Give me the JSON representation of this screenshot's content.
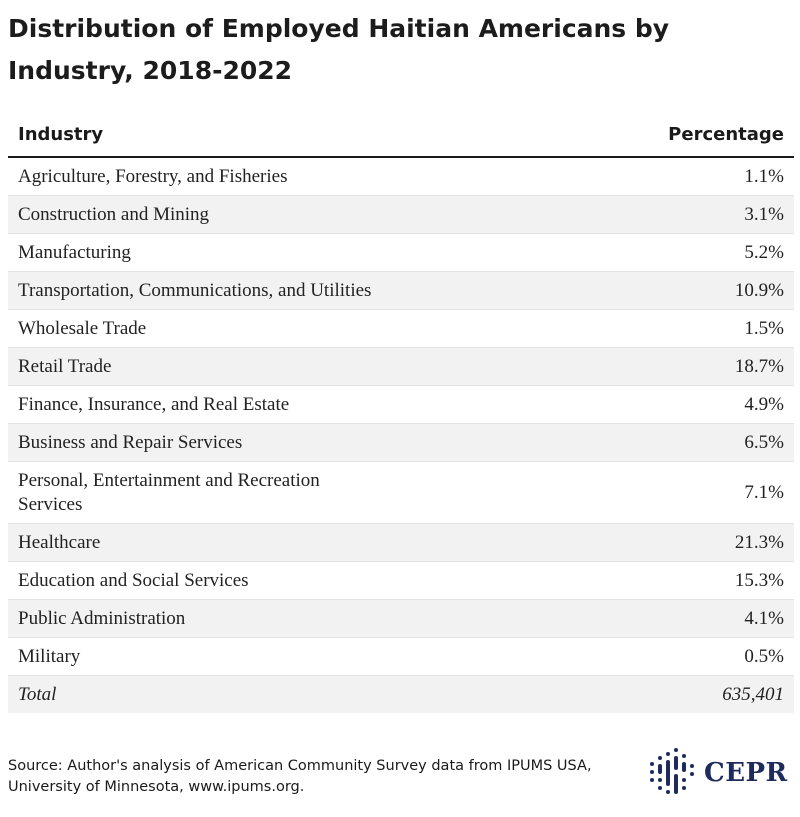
{
  "title": "Distribution of Employed Haitian Americans by Industry, 2018-2022",
  "chart_data": {
    "type": "table",
    "columns": [
      "Industry",
      "Percentage"
    ],
    "rows": [
      {
        "industry": "Agriculture, Forestry, and Fisheries",
        "percentage": "1.1%"
      },
      {
        "industry": "Construction and Mining",
        "percentage": "3.1%"
      },
      {
        "industry": "Manufacturing",
        "percentage": "5.2%"
      },
      {
        "industry": "Transportation, Communications, and Utilities",
        "percentage": "10.9%"
      },
      {
        "industry": "Wholesale Trade",
        "percentage": "1.5%"
      },
      {
        "industry": "Retail Trade",
        "percentage": "18.7%"
      },
      {
        "industry": "Finance, Insurance, and Real Estate",
        "percentage": "4.9%"
      },
      {
        "industry": "Business and Repair Services",
        "percentage": "6.5%"
      },
      {
        "industry": "Personal, Entertainment and Recreation Services",
        "percentage": "7.1%"
      },
      {
        "industry": "Healthcare",
        "percentage": "21.3%"
      },
      {
        "industry": "Education and Social Services",
        "percentage": "15.3%"
      },
      {
        "industry": "Public Administration",
        "percentage": "4.1%"
      },
      {
        "industry": "Military",
        "percentage": "0.5%"
      }
    ],
    "total": {
      "label": "Total",
      "value": "635,401"
    }
  },
  "footer": {
    "source": "Source: Author's analysis of American Community Survey data from IPUMS USA, University of Minnesota, www.ipums.org."
  },
  "logo": {
    "text": "CEPR",
    "icon": "cepr-dots-logo-icon",
    "color": "#1f2b5c"
  }
}
